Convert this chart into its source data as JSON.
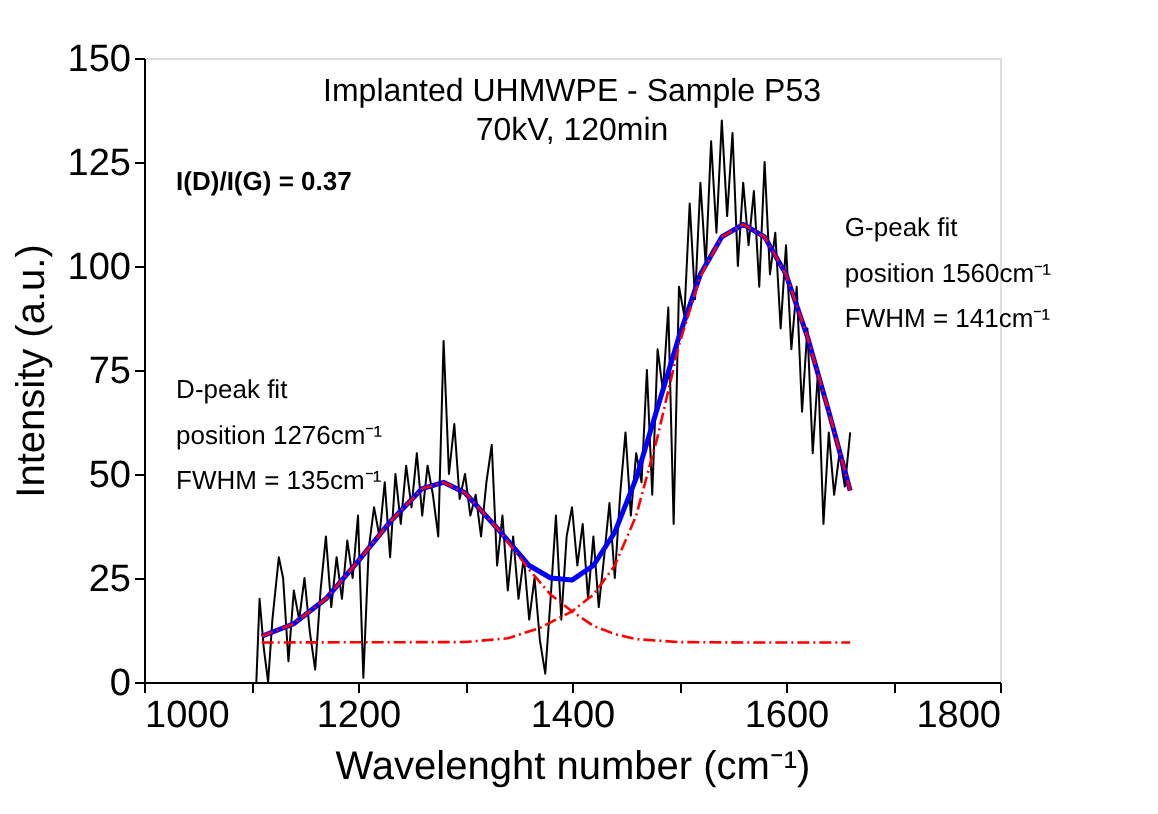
{
  "chart_data": {
    "type": "line",
    "title": "Implanted UHMWPE - Sample P53",
    "subtitle": "70kV, 120min",
    "xlabel": "Wavelenght number (cm⁻¹)",
    "ylabel": "Intensity (a.u.)",
    "annotations": [
      "I(D)/I(G) = 0.37",
      "D-peak fit\nposition 1276cm⁻¹\nFWHM = 135cm⁻¹",
      "G-peak fit\nposition 1560cm⁻¹\nFWHM = 141cm⁻¹"
    ],
    "xlim": [
      1000,
      1800
    ],
    "ylim": [
      0,
      150
    ],
    "xticks": [
      1000,
      {
        "value": 1100,
        "label": null
      },
      1200,
      {
        "value": 1300,
        "label": null
      },
      1400,
      {
        "value": 1500,
        "label": null
      },
      1600,
      {
        "value": 1700,
        "label": null
      },
      1800
    ],
    "yticks": [
      0,
      25,
      50,
      75,
      100,
      125,
      150
    ],
    "grid": false,
    "series": [
      {
        "color": "#000000",
        "line_style": "solid",
        "x": [
          1105,
          1108,
          1112,
          1116,
          1120,
          1126,
          1130,
          1135,
          1140,
          1145,
          1150,
          1155,
          1160,
          1165,
          1170,
          1175,
          1180,
          1185,
          1190,
          1195,
          1200,
          1205,
          1210,
          1215,
          1220,
          1225,
          1230,
          1235,
          1240,
          1245,
          1250,
          1255,
          1260,
          1265,
          1270,
          1275,
          1280,
          1285,
          1290,
          1295,
          1300,
          1305,
          1310,
          1315,
          1320,
          1325,
          1330,
          1335,
          1340,
          1345,
          1350,
          1355,
          1360,
          1365,
          1370,
          1375,
          1380,
          1385,
          1390,
          1395,
          1400,
          1405,
          1410,
          1415,
          1420,
          1425,
          1430,
          1435,
          1440,
          1445,
          1450,
          1455,
          1460,
          1465,
          1470,
          1475,
          1480,
          1485,
          1490,
          1495,
          1500,
          1505,
          1510,
          1515,
          1520,
          1525,
          1530,
          1535,
          1540,
          1545,
          1550,
          1555,
          1560,
          1565,
          1570,
          1575,
          1580,
          1585,
          1590,
          1595,
          1600,
          1605,
          1610,
          1615,
          1620,
          1625,
          1630,
          1635,
          1640,
          1645,
          1650,
          1655,
          1660
        ],
        "values": [
          0,
          20,
          8,
          0,
          15,
          30,
          25,
          5,
          22,
          15,
          25,
          12,
          3,
          22,
          35,
          18,
          30,
          20,
          34,
          25,
          40,
          1,
          32,
          42,
          35,
          48,
          30,
          50,
          38,
          52,
          42,
          55,
          40,
          52,
          45,
          35,
          82,
          50,
          62,
          44,
          50,
          40,
          45,
          35,
          48,
          57,
          28,
          40,
          22,
          35,
          20,
          30,
          15,
          25,
          10,
          2,
          20,
          40,
          15,
          35,
          42,
          28,
          38,
          20,
          35,
          18,
          30,
          43,
          25,
          45,
          60,
          40,
          55,
          48,
          75,
          45,
          80,
          70,
          90,
          38,
          95,
          88,
          115,
          92,
          120,
          100,
          130,
          108,
          135,
          112,
          132,
          100,
          120,
          105,
          118,
          95,
          125,
          98,
          108,
          85,
          105,
          80,
          95,
          65,
          85,
          55,
          75,
          38,
          60,
          45,
          55,
          47,
          60
        ]
      },
      {
        "color": "#0000ff",
        "line_style": "solid",
        "x": [
          1110,
          1140,
          1170,
          1200,
          1230,
          1260,
          1280,
          1300,
          1330,
          1360,
          1380,
          1400,
          1420,
          1440,
          1460,
          1480,
          1500,
          1520,
          1540,
          1560,
          1580,
          1600,
          1620,
          1640,
          1660
        ],
        "values": [
          11,
          14,
          20,
          29,
          38.5,
          46.5,
          48,
          45.5,
          37,
          28,
          25,
          24.5,
          28,
          36,
          49,
          66,
          83,
          98,
          107,
          110,
          107,
          98,
          83,
          65,
          46
        ]
      },
      {
        "color": "#ff0000",
        "line_style": "dashed",
        "x": [
          1110,
          1140,
          1170,
          1200,
          1230,
          1260,
          1280,
          1300,
          1330,
          1360,
          1380,
          1400,
          1420,
          1440,
          1460,
          1500,
          1560,
          1660
        ],
        "values": [
          11,
          14,
          20,
          29,
          38.5,
          46.5,
          48,
          45.5,
          37,
          27,
          21,
          17,
          13.5,
          11.5,
          10.3,
          9.6,
          9.5,
          9.5
        ]
      },
      {
        "color": "#ff0000",
        "line_style": "dashed",
        "x": [
          1110,
          1300,
          1340,
          1370,
          1400,
          1420,
          1440,
          1460,
          1480,
          1500,
          1520,
          1540,
          1560,
          1580,
          1600,
          1620,
          1640,
          1660
        ],
        "values": [
          9.5,
          9.6,
          10.5,
          13,
          17,
          21,
          28,
          40,
          59,
          81,
          97.5,
          107,
          110,
          107,
          98,
          83,
          65,
          46
        ]
      }
    ]
  }
}
